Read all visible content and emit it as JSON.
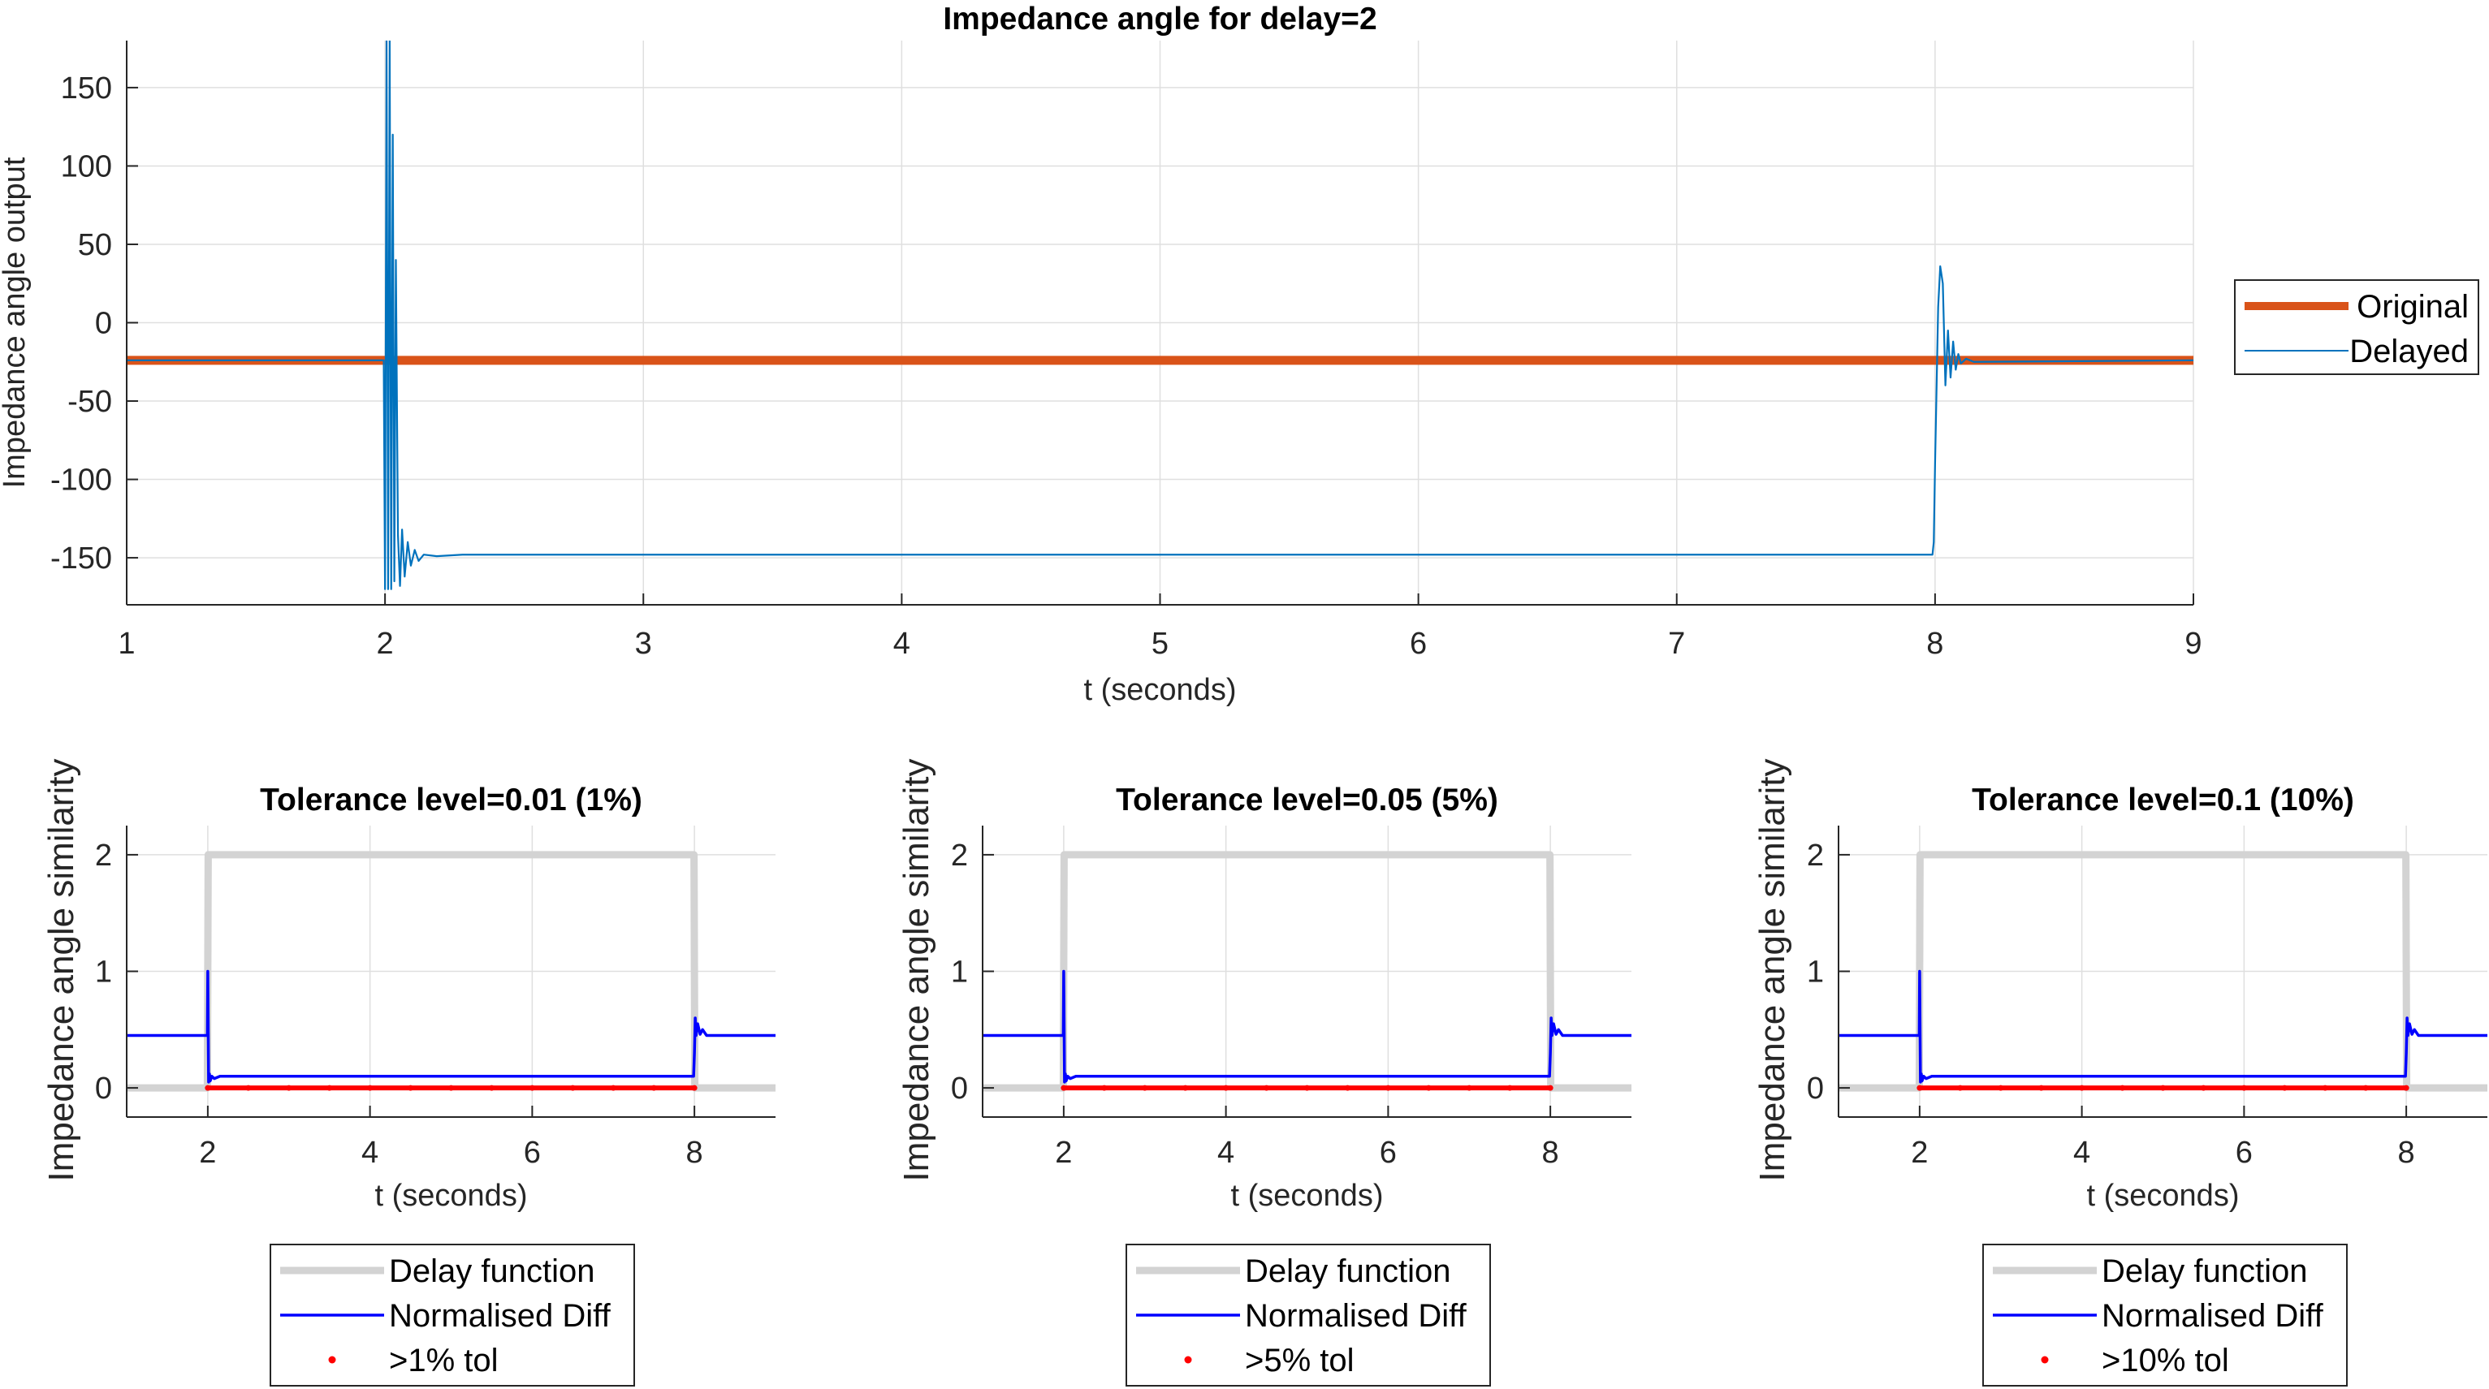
{
  "chart_data": [
    {
      "type": "line",
      "title": "Impedance angle for delay=2",
      "xlabel": "t (seconds)",
      "ylabel": "Impedance angle output",
      "xlim": [
        1,
        9
      ],
      "ylim": [
        -180,
        180
      ],
      "xticks": [
        "1",
        "2",
        "3",
        "4",
        "5",
        "6",
        "7",
        "8",
        "9"
      ],
      "yticks": [
        "150",
        "100",
        "50",
        "0",
        "-50",
        "-100",
        "-150"
      ],
      "grid": true,
      "legend_position": "outside-right",
      "series": [
        {
          "name": "Original",
          "color": "#D95319",
          "x": [
            1,
            9
          ],
          "y": [
            -24,
            -24
          ]
        },
        {
          "name": "Delayed",
          "color": "#0072BD",
          "x": [
            1,
            1.995,
            2.0,
            2.006,
            2.012,
            2.018,
            2.024,
            2.03,
            2.036,
            2.042,
            2.05,
            2.058,
            2.066,
            2.076,
            2.088,
            2.1,
            2.115,
            2.13,
            2.15,
            2.2,
            2.3,
            5.0,
            7.99,
            7.995,
            8.0,
            8.006,
            8.012,
            8.02,
            8.03,
            8.04,
            8.05,
            8.06,
            8.07,
            8.08,
            8.09,
            8.1,
            8.12,
            8.15,
            9
          ],
          "y": [
            -24,
            -24,
            -170,
            180,
            -170,
            180,
            -170,
            120,
            -165,
            40,
            -135,
            -168,
            -132,
            -162,
            -140,
            -155,
            -145,
            -152,
            -148,
            -149,
            -148,
            -148,
            -148,
            -140,
            -90,
            -40,
            10,
            36,
            25,
            -40,
            -5,
            -35,
            -12,
            -30,
            -20,
            -26,
            -23,
            -25,
            -24
          ]
        }
      ]
    },
    {
      "type": "line",
      "title": "Tolerance level=0.01 (1%)",
      "xlabel": "t (seconds)",
      "ylabel": "Impedance angle similarity",
      "xlim": [
        1,
        9
      ],
      "ylim": [
        -0.25,
        2.25
      ],
      "xticks": [
        "2",
        "4",
        "6",
        "8"
      ],
      "yticks": [
        "2",
        "1",
        "0"
      ],
      "grid": true,
      "legend_position": "below",
      "series": [
        {
          "name": "Delay function",
          "color": "#D3D3D3",
          "x": [
            1,
            1.995,
            2.005,
            7.995,
            8.005,
            9
          ],
          "y": [
            0,
            0,
            2,
            2,
            0,
            0
          ]
        },
        {
          "name": "Normalised Diff",
          "color": "#0000FF",
          "x": [
            1,
            1.995,
            2.0,
            2.01,
            2.02,
            2.03,
            2.05,
            2.08,
            2.15,
            7.99,
            8.0,
            8.01,
            8.02,
            8.04,
            8.07,
            8.1,
            8.15,
            9
          ],
          "y": [
            0.45,
            0.45,
            1.0,
            0.05,
            0.12,
            0.06,
            0.1,
            0.08,
            0.1,
            0.1,
            0.3,
            0.6,
            0.45,
            0.55,
            0.46,
            0.5,
            0.45,
            0.45
          ]
        },
        {
          "name": ">1% tol",
          "color": "#FF0000",
          "x": [
            2.0,
            2.5,
            3.0,
            3.5,
            4.0,
            4.5,
            5.0,
            5.5,
            6.0,
            6.5,
            7.0,
            7.5,
            8.0
          ],
          "y": [
            0,
            0,
            0,
            0,
            0,
            0,
            0,
            0,
            0,
            0,
            0,
            0,
            0
          ]
        }
      ]
    },
    {
      "type": "line",
      "title": "Tolerance level=0.05 (5%)",
      "xlabel": "t (seconds)",
      "ylabel": "Impedance angle similarity",
      "xlim": [
        1,
        9
      ],
      "ylim": [
        -0.25,
        2.25
      ],
      "xticks": [
        "2",
        "4",
        "6",
        "8"
      ],
      "yticks": [
        "2",
        "1",
        "0"
      ],
      "grid": true,
      "legend_position": "below",
      "series": [
        {
          "name": "Delay function",
          "color": "#D3D3D3",
          "x": [
            1,
            1.995,
            2.005,
            7.995,
            8.005,
            9
          ],
          "y": [
            0,
            0,
            2,
            2,
            0,
            0
          ]
        },
        {
          "name": "Normalised Diff",
          "color": "#0000FF",
          "x": [
            1,
            1.995,
            2.0,
            2.01,
            2.02,
            2.03,
            2.05,
            2.08,
            2.15,
            7.99,
            8.0,
            8.01,
            8.02,
            8.04,
            8.07,
            8.1,
            8.15,
            9
          ],
          "y": [
            0.45,
            0.45,
            1.0,
            0.05,
            0.12,
            0.06,
            0.1,
            0.08,
            0.1,
            0.1,
            0.3,
            0.6,
            0.45,
            0.55,
            0.46,
            0.5,
            0.45,
            0.45
          ]
        },
        {
          "name": ">5% tol",
          "color": "#FF0000",
          "x": [
            2.0,
            2.5,
            3.0,
            3.5,
            4.0,
            4.5,
            5.0,
            5.5,
            6.0,
            6.5,
            7.0,
            7.5,
            8.0
          ],
          "y": [
            0,
            0,
            0,
            0,
            0,
            0,
            0,
            0,
            0,
            0,
            0,
            0,
            0
          ]
        }
      ]
    },
    {
      "type": "line",
      "title": "Tolerance level=0.1 (10%)",
      "xlabel": "t (seconds)",
      "ylabel": "Impedance angle similarity",
      "xlim": [
        1,
        9
      ],
      "ylim": [
        -0.25,
        2.25
      ],
      "xticks": [
        "2",
        "4",
        "6",
        "8"
      ],
      "yticks": [
        "2",
        "1",
        "0"
      ],
      "grid": true,
      "legend_position": "below",
      "series": [
        {
          "name": "Delay function",
          "color": "#D3D3D3",
          "x": [
            1,
            1.995,
            2.005,
            7.995,
            8.005,
            9
          ],
          "y": [
            0,
            0,
            2,
            2,
            0,
            0
          ]
        },
        {
          "name": "Normalised Diff",
          "color": "#0000FF",
          "x": [
            1,
            1.995,
            2.0,
            2.01,
            2.02,
            2.03,
            2.05,
            2.08,
            2.15,
            7.99,
            8.0,
            8.01,
            8.02,
            8.04,
            8.07,
            8.1,
            8.15,
            9
          ],
          "y": [
            0.45,
            0.45,
            1.0,
            0.05,
            0.12,
            0.06,
            0.1,
            0.08,
            0.1,
            0.1,
            0.3,
            0.6,
            0.45,
            0.55,
            0.46,
            0.5,
            0.45,
            0.45
          ]
        },
        {
          "name": ">10% tol",
          "color": "#FF0000",
          "x": [
            2.0,
            2.5,
            3.0,
            3.5,
            4.0,
            4.5,
            5.0,
            5.5,
            6.0,
            6.5,
            7.0,
            7.5,
            8.0
          ],
          "y": [
            0,
            0,
            0,
            0,
            0,
            0,
            0,
            0,
            0,
            0,
            0,
            0,
            0
          ]
        }
      ]
    }
  ]
}
